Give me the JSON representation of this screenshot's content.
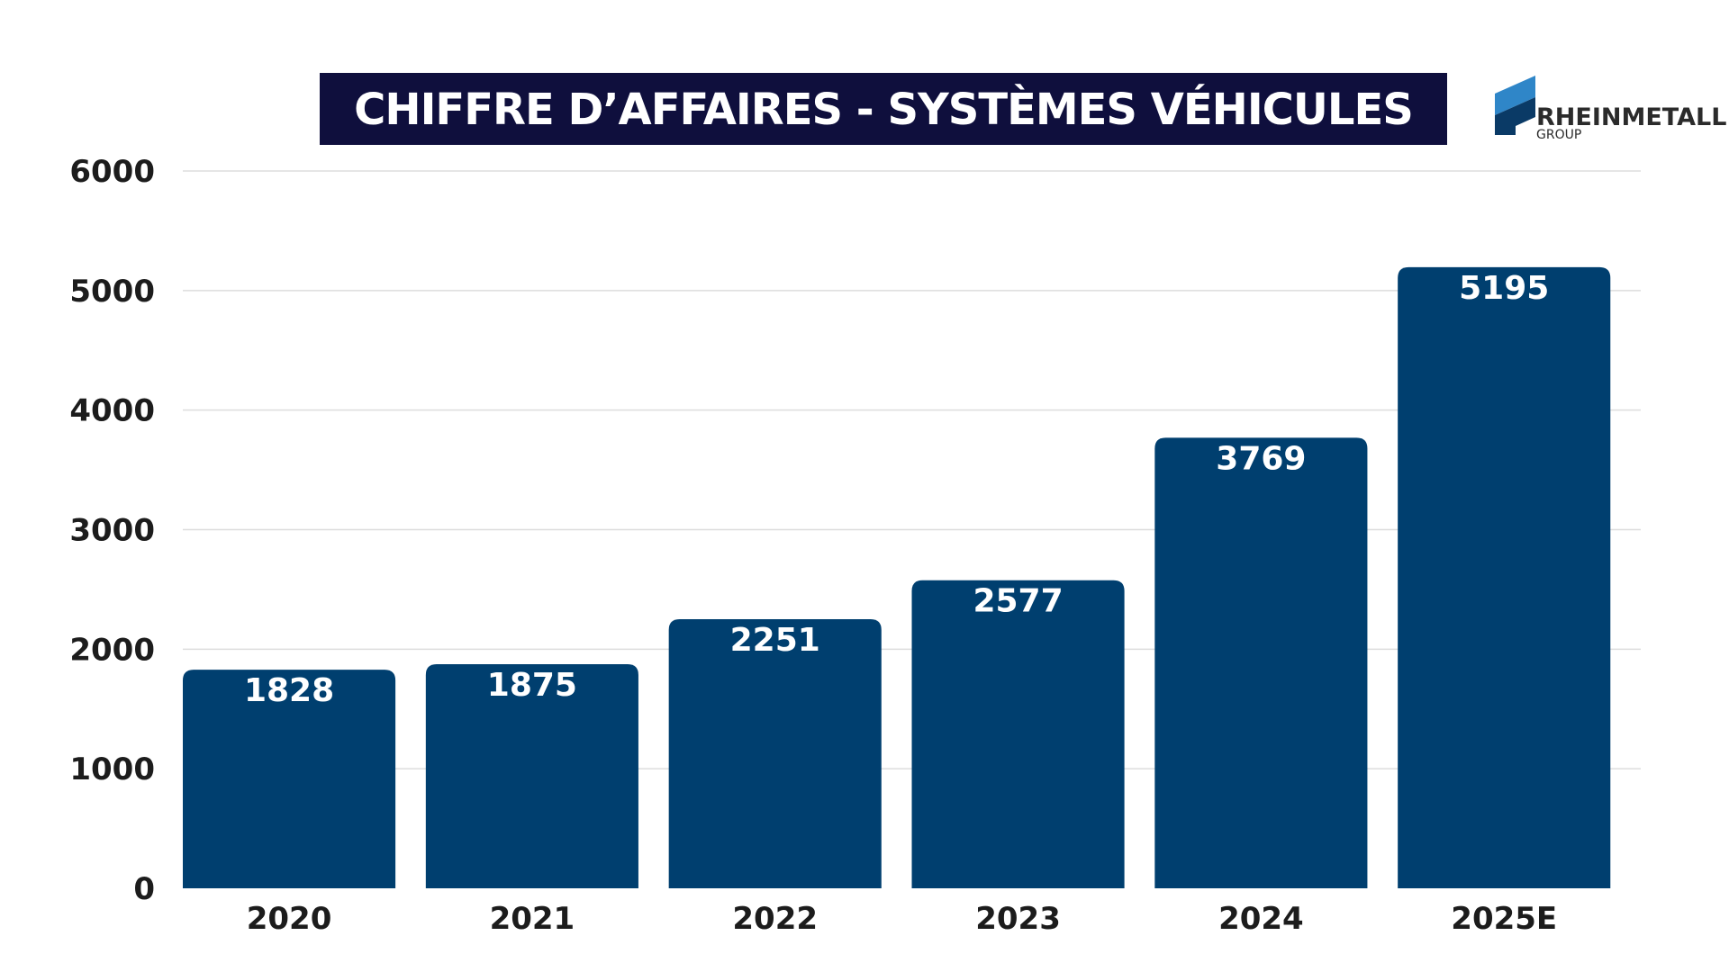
{
  "title": "CHIFFRE D’AFFAIRES - SYSTÈMES VÉHICULES",
  "logo": {
    "name": "RHEINMETALL",
    "sub": "GROUP"
  },
  "colors": {
    "bar": "#003f6f",
    "title_bg": "#0f0f3d",
    "grid": "#dddddd",
    "logo_dark": "#0a3a66",
    "logo_light": "#2f86c8"
  },
  "chart_data": {
    "type": "bar",
    "title": "CHIFFRE D’AFFAIRES - SYSTÈMES VÉHICULES",
    "categories": [
      "2020",
      "2021",
      "2022",
      "2023",
      "2024",
      "2025E"
    ],
    "values": [
      1828,
      1875,
      2251,
      2577,
      3769,
      5195
    ],
    "ylim": [
      0,
      6000
    ],
    "yticks": [
      0,
      1000,
      2000,
      3000,
      4000,
      5000,
      6000
    ],
    "xlabel": "",
    "ylabel": "",
    "grid": true
  }
}
